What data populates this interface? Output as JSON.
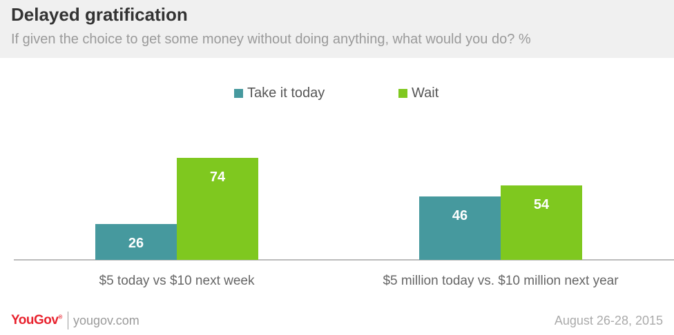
{
  "header": {
    "title": "Delayed gratification",
    "subtitle": "If given the choice to get some money without doing anything, what would you do? %"
  },
  "footer": {
    "logo": "YouGov",
    "site": "yougov.com",
    "date": "August 26-28, 2015"
  },
  "colors": {
    "take_it_today": "#46999e",
    "wait": "#7fc81f",
    "axis": "#bbbbbb",
    "label_text": "#ffffff",
    "category_text": "#666666"
  },
  "chart_data": {
    "type": "bar",
    "title": "Delayed gratification",
    "subtitle": "If given the choice to get some money without doing anything, what would you do? %",
    "categories": [
      "$5 today vs $10 next week",
      "$5 million today vs. $10 million next year"
    ],
    "series": [
      {
        "name": "Take it today",
        "values": [
          26,
          46
        ]
      },
      {
        "name": "Wait",
        "values": [
          74,
          54
        ]
      }
    ],
    "ylim": [
      0,
      100
    ],
    "xlabel": "",
    "ylabel": "",
    "grid": false,
    "legend": "top-center",
    "data_labels": true
  }
}
